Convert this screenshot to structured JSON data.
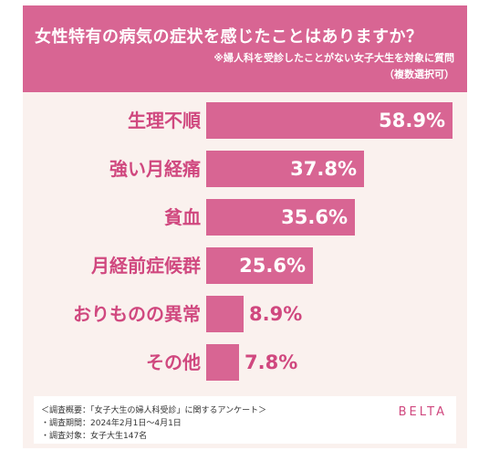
{
  "header": {
    "title": "女性特有の病気の症状を感じたことはありますか？",
    "subtitle": "※婦人科を受診したことがない女子大生を対象に質問",
    "subtitle2": "（複数選択可）"
  },
  "colors": {
    "accent": "#d86593",
    "label_pink": "#d0487f",
    "background": "#faf1ee",
    "value_inside": "#ffffff",
    "value_outside": "#d0487f"
  },
  "chart_data": {
    "type": "bar",
    "orientation": "horizontal",
    "categories": [
      "生理不順",
      "強い月経痛",
      "貧血",
      "月経前症候群",
      "おりものの異常",
      "その他"
    ],
    "values": [
      58.9,
      37.8,
      35.6,
      25.6,
      8.9,
      7.8
    ],
    "value_labels": [
      "58.9%",
      "37.8%",
      "35.6%",
      "25.6%",
      "8.9%",
      "7.8%"
    ],
    "unit": "%",
    "xlim": [
      0,
      65
    ],
    "grid": false,
    "legend": "none"
  },
  "footer": {
    "note1": "＜調査概要：「女子大生の婦人科受診」に関するアンケート＞",
    "note2": "・調査期間：2024年2月1日〜4月1日",
    "note3": "・調査対象：女子大生147名",
    "brand": "BELTA"
  }
}
